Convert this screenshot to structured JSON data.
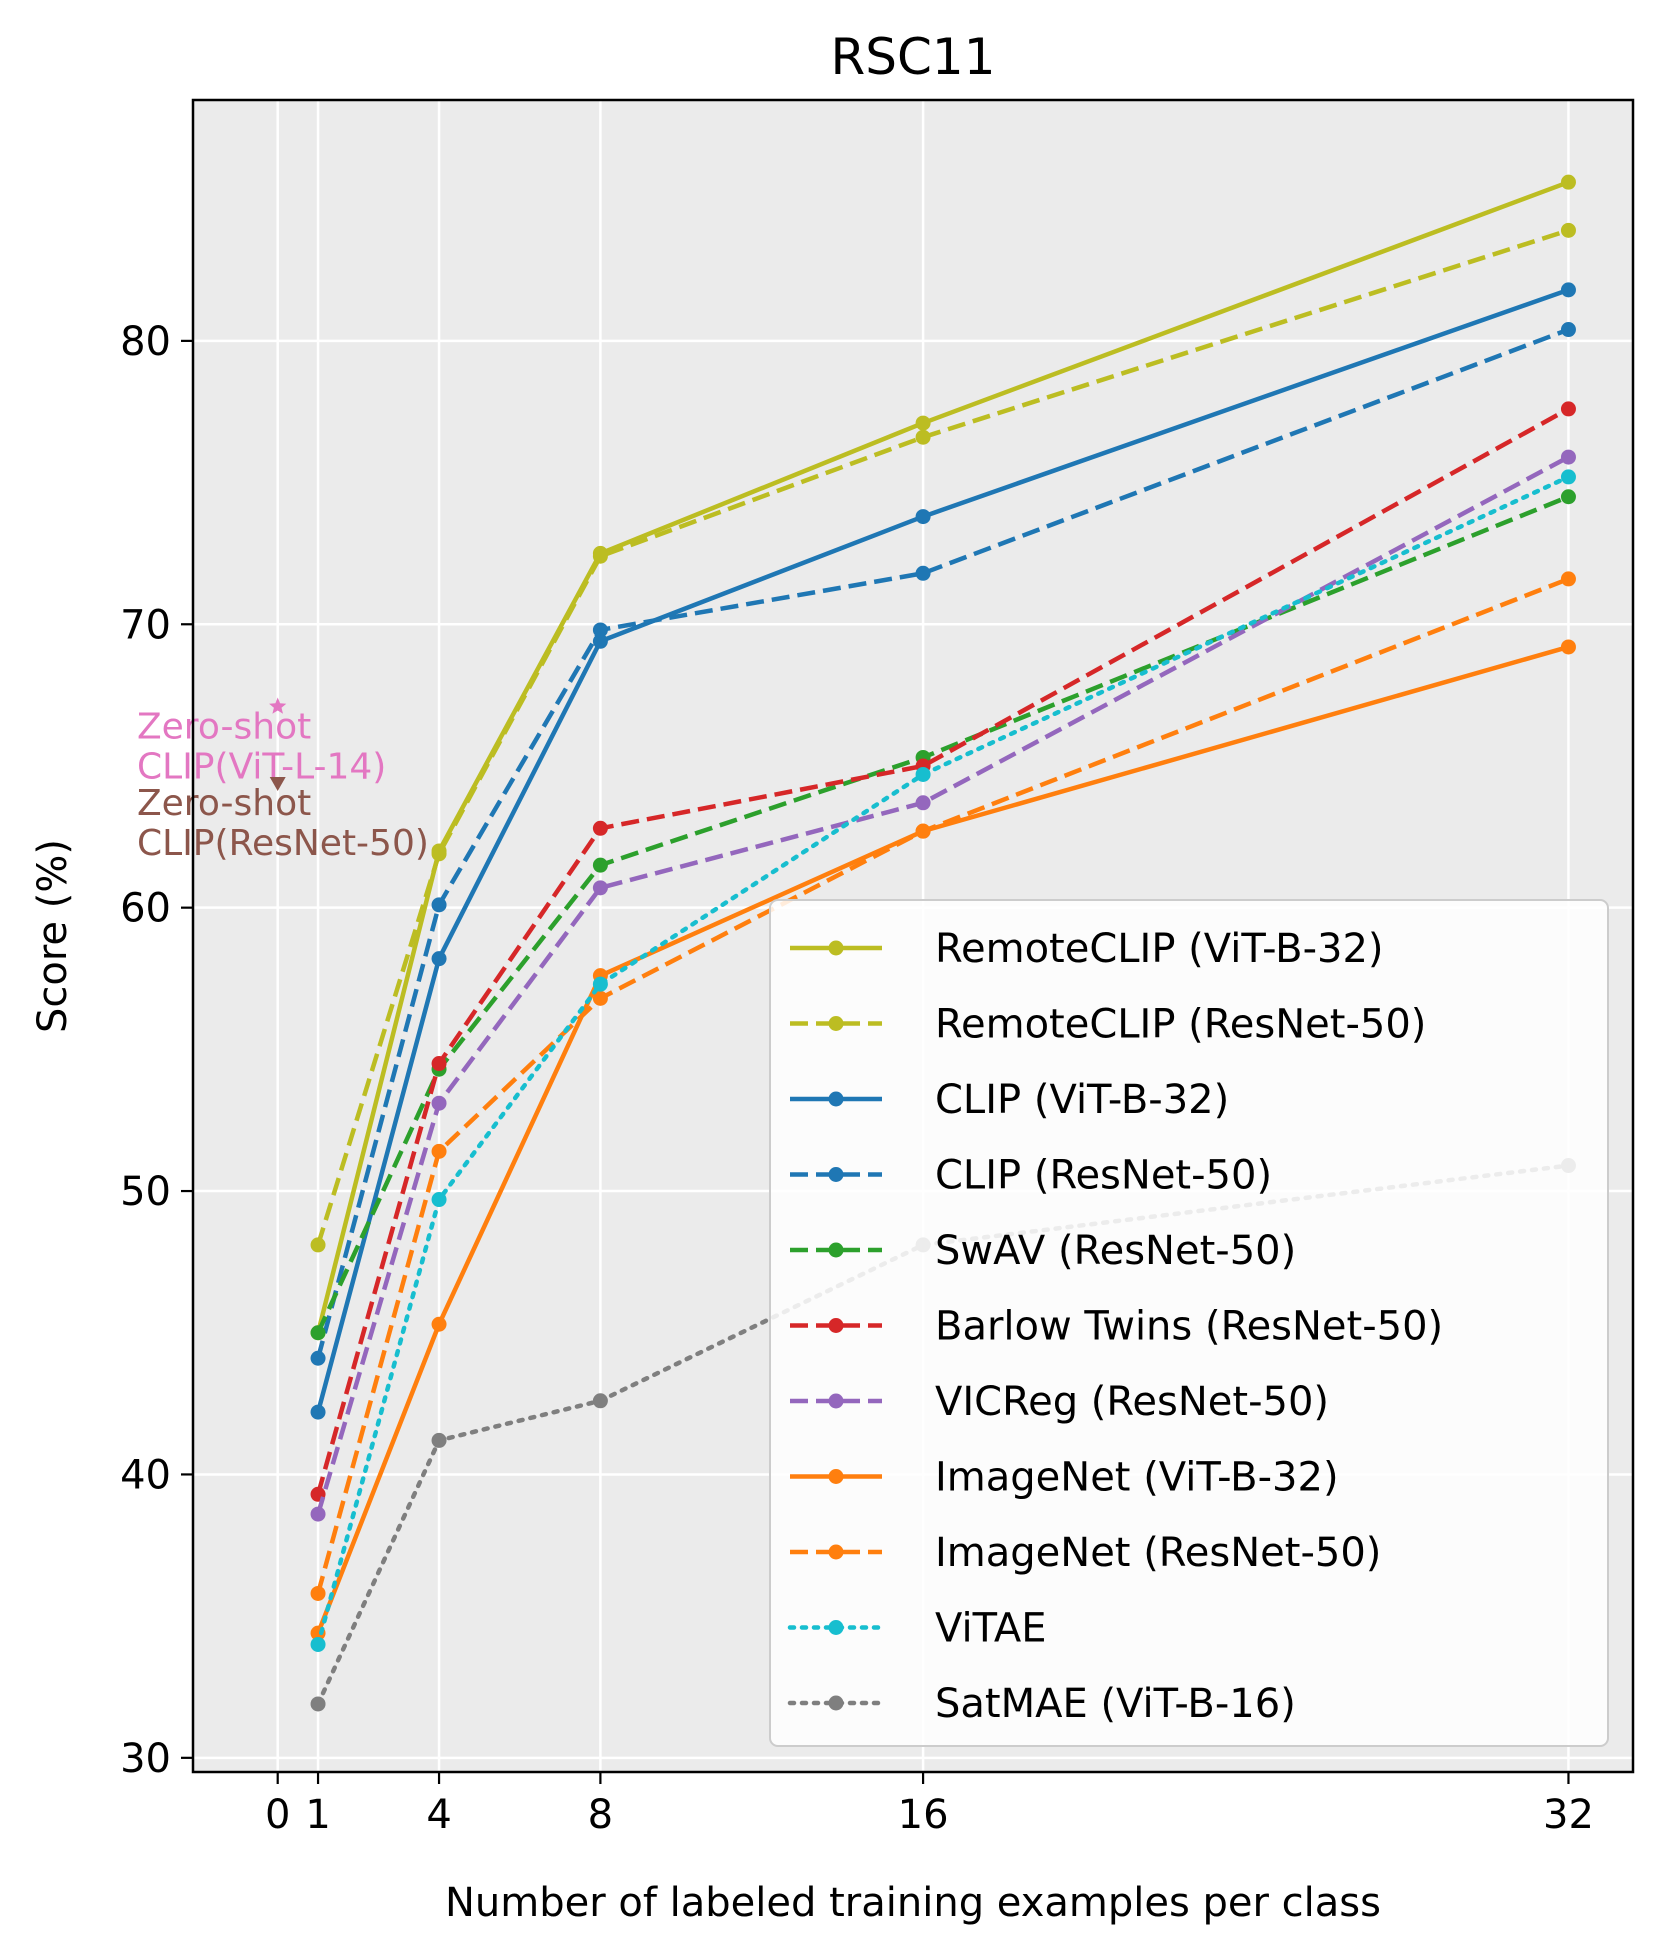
{
  "chart_data": {
    "type": "line",
    "title": "RSC11",
    "xlabel": "Number of labeled training examples per class",
    "ylabel": "Score (%)",
    "xlim": [
      -2.1,
      33.6
    ],
    "ylim": [
      29.5,
      88.5
    ],
    "x_ticks": [
      0,
      1,
      4,
      8,
      16,
      32
    ],
    "x_tick_labels": [
      "0",
      "1",
      "4",
      "8",
      "16",
      "32"
    ],
    "y_ticks": [
      30,
      40,
      50,
      60,
      70,
      80
    ],
    "y_tick_labels": [
      "30",
      "40",
      "50",
      "60",
      "70",
      "80"
    ],
    "grid": true,
    "legend_position": "lower-right",
    "x": [
      1,
      4,
      8,
      16,
      32
    ],
    "series": [
      {
        "name": "RemoteCLIP (ViT-B-32)",
        "color": "#bcbd22",
        "style": "solid",
        "values": [
          45.0,
          62.0,
          72.5,
          77.1,
          85.6
        ]
      },
      {
        "name": "RemoteCLIP (ResNet-50)",
        "color": "#bcbd22",
        "style": "dashed",
        "values": [
          48.1,
          61.9,
          72.4,
          76.6,
          83.9
        ]
      },
      {
        "name": "CLIP (ViT-B-32)",
        "color": "#1f77b4",
        "style": "solid",
        "values": [
          42.2,
          58.2,
          69.4,
          73.8,
          81.8
        ]
      },
      {
        "name": "CLIP (ResNet-50)",
        "color": "#1f77b4",
        "style": "dashed",
        "values": [
          44.1,
          60.1,
          69.8,
          71.8,
          80.4
        ]
      },
      {
        "name": "SwAV (ResNet-50)",
        "color": "#2ca02c",
        "style": "dashed",
        "values": [
          45.0,
          54.3,
          61.5,
          65.3,
          74.5
        ]
      },
      {
        "name": "Barlow Twins (ResNet-50)",
        "color": "#d62728",
        "style": "dashed",
        "values": [
          39.3,
          54.5,
          62.8,
          65.0,
          77.6
        ]
      },
      {
        "name": "VICReg (ResNet-50)",
        "color": "#9467bd",
        "style": "dashed",
        "values": [
          38.6,
          53.1,
          60.7,
          63.7,
          75.9
        ]
      },
      {
        "name": "ImageNet (ViT-B-32)",
        "color": "#ff7f0e",
        "style": "solid",
        "values": [
          34.4,
          45.3,
          57.6,
          62.7,
          69.2
        ]
      },
      {
        "name": "ImageNet (ResNet-50)",
        "color": "#ff7f0e",
        "style": "dashed",
        "values": [
          35.8,
          51.4,
          56.8,
          62.7,
          71.6
        ]
      },
      {
        "name": "ViTAE",
        "color": "#17becf",
        "style": "dotted",
        "values": [
          34.0,
          49.7,
          57.3,
          64.7,
          75.2
        ]
      },
      {
        "name": "SatMAE (ViT-B-16)",
        "color": "#7f7f7f",
        "style": "dotted",
        "values": [
          31.9,
          41.2,
          42.6,
          48.1,
          50.9
        ]
      }
    ],
    "annotations": [
      {
        "text_line1": "Zero-shot",
        "text_line2": "CLIP(ViT-L-14)",
        "color": "#e377c2",
        "x": 0,
        "y": 67.1,
        "marker": "star"
      },
      {
        "text_line1": "Zero-shot",
        "text_line2": "CLIP(ResNet-50)",
        "color": "#8c564b",
        "x": 0,
        "y": 64.4,
        "marker": "triangle-down"
      }
    ]
  }
}
